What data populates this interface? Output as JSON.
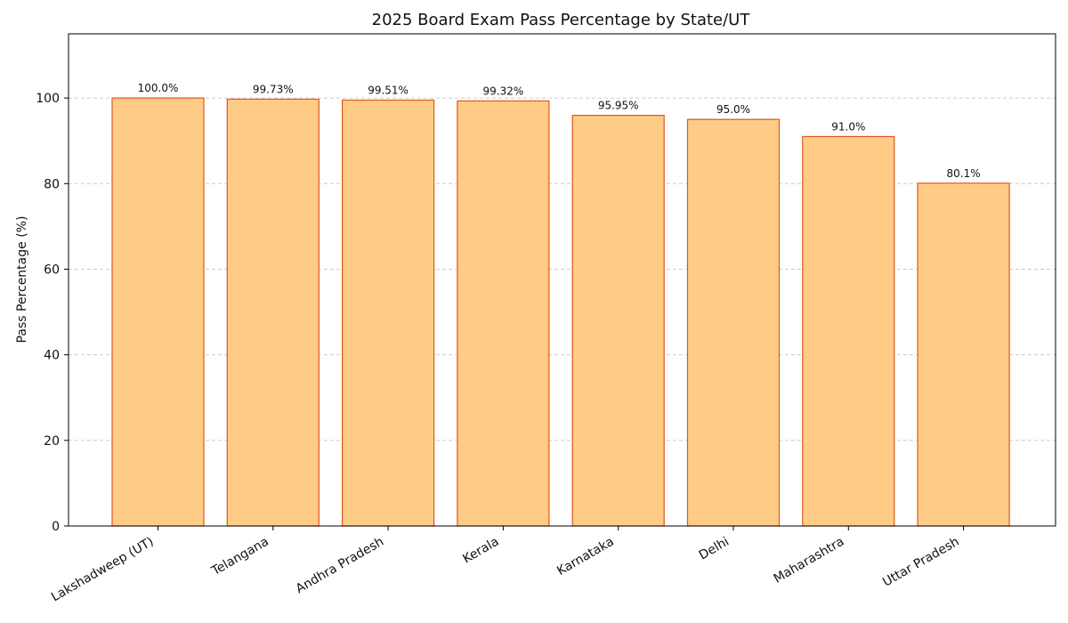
{
  "chart_data": {
    "type": "bar",
    "title": "2025 Board Exam Pass Percentage by State/UT",
    "xlabel": "",
    "ylabel": "Pass Percentage (%)",
    "ylim": [
      0,
      115
    ],
    "yticks": [
      0,
      20,
      40,
      60,
      80,
      100
    ],
    "grid": "y",
    "categories": [
      "Lakshadweep (UT)",
      "Telangana",
      "Andhra Pradesh",
      "Kerala",
      "Karnataka",
      "Delhi",
      "Maharashtra",
      "Uttar Pradesh"
    ],
    "values": [
      100.0,
      99.73,
      99.51,
      99.32,
      95.95,
      95.0,
      91.0,
      80.1
    ],
    "data_labels": [
      "100.0%",
      "99.73%",
      "99.51%",
      "99.32%",
      "95.95%",
      "95.0%",
      "91.0%",
      "80.1%"
    ],
    "colors": {
      "bar_fill": "#ffcc88",
      "bar_edge": "#e0561a"
    }
  }
}
